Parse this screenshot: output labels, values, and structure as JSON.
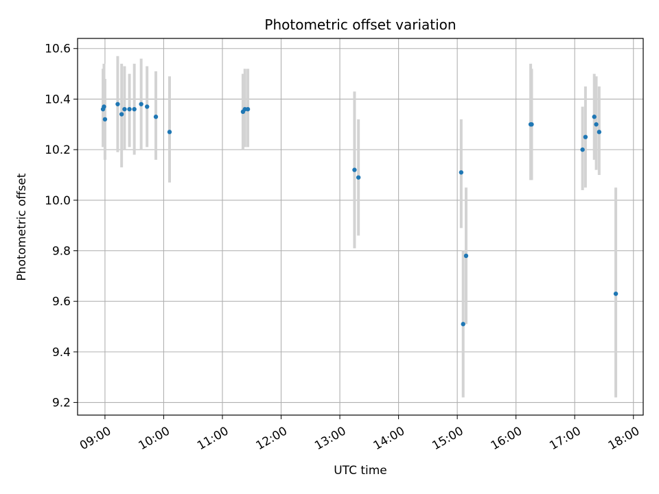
{
  "chart_data": {
    "type": "scatter",
    "title": "Photometric offset variation",
    "xlabel": "UTC time",
    "ylabel": "Photometric offset",
    "x_tick_labels": [
      "09:00",
      "10:00",
      "11:00",
      "12:00",
      "13:00",
      "14:00",
      "15:00",
      "16:00",
      "17:00",
      "18:00"
    ],
    "y_tick_labels": [
      "9.2",
      "9.4",
      "9.6",
      "9.8",
      "10.0",
      "10.2",
      "10.4",
      "10.6"
    ],
    "y_ticks": [
      9.2,
      9.4,
      9.6,
      9.8,
      10.0,
      10.2,
      10.4,
      10.6
    ],
    "xlim": [
      "08:32",
      "18:10"
    ],
    "ylim": [
      9.15,
      10.64
    ],
    "grid": true,
    "error_bar_color": "#d3d3d3",
    "point_color": "#1f77b4",
    "series": [
      {
        "points": [
          {
            "x": "08:58",
            "y": 10.36,
            "err_low": 10.21,
            "err_high": 10.52
          },
          {
            "x": "08:59",
            "y": 10.37,
            "err_low": 10.23,
            "err_high": 10.54
          },
          {
            "x": "09:00",
            "y": 10.32,
            "err_low": 10.16,
            "err_high": 10.48
          },
          {
            "x": "09:13",
            "y": 10.38,
            "err_low": 10.19,
            "err_high": 10.57
          },
          {
            "x": "09:17",
            "y": 10.34,
            "err_low": 10.13,
            "err_high": 10.54
          },
          {
            "x": "09:20",
            "y": 10.36,
            "err_low": 10.2,
            "err_high": 10.53
          },
          {
            "x": "09:25",
            "y": 10.36,
            "err_low": 10.21,
            "err_high": 10.5
          },
          {
            "x": "09:30",
            "y": 10.36,
            "err_low": 10.18,
            "err_high": 10.54
          },
          {
            "x": "09:37",
            "y": 10.38,
            "err_low": 10.2,
            "err_high": 10.56
          },
          {
            "x": "09:43",
            "y": 10.37,
            "err_low": 10.21,
            "err_high": 10.53
          },
          {
            "x": "09:52",
            "y": 10.33,
            "err_low": 10.16,
            "err_high": 10.51
          },
          {
            "x": "10:06",
            "y": 10.27,
            "err_low": 10.07,
            "err_high": 10.49
          },
          {
            "x": "11:21",
            "y": 10.35,
            "err_low": 10.2,
            "err_high": 10.5
          },
          {
            "x": "11:23",
            "y": 10.36,
            "err_low": 10.21,
            "err_high": 10.52
          },
          {
            "x": "11:26",
            "y": 10.36,
            "err_low": 10.21,
            "err_high": 10.52
          },
          {
            "x": "13:15",
            "y": 10.12,
            "err_low": 9.81,
            "err_high": 10.43
          },
          {
            "x": "13:19",
            "y": 10.09,
            "err_low": 9.86,
            "err_high": 10.32
          },
          {
            "x": "15:04",
            "y": 10.11,
            "err_low": 9.89,
            "err_high": 10.32
          },
          {
            "x": "15:06",
            "y": 9.51,
            "err_low": 9.22,
            "err_high": 9.8
          },
          {
            "x": "15:09",
            "y": 9.78,
            "err_low": 9.51,
            "err_high": 10.05
          },
          {
            "x": "16:15",
            "y": 10.3,
            "err_low": 10.08,
            "err_high": 10.54
          },
          {
            "x": "16:16",
            "y": 10.3,
            "err_low": 10.08,
            "err_high": 10.52
          },
          {
            "x": "17:08",
            "y": 10.2,
            "err_low": 10.04,
            "err_high": 10.37
          },
          {
            "x": "17:11",
            "y": 10.25,
            "err_low": 10.05,
            "err_high": 10.45
          },
          {
            "x": "17:20",
            "y": 10.33,
            "err_low": 10.16,
            "err_high": 10.5
          },
          {
            "x": "17:22",
            "y": 10.3,
            "err_low": 10.12,
            "err_high": 10.49
          },
          {
            "x": "17:25",
            "y": 10.27,
            "err_low": 10.1,
            "err_high": 10.45
          },
          {
            "x": "17:42",
            "y": 9.63,
            "err_low": 9.22,
            "err_high": 10.05
          }
        ]
      }
    ]
  }
}
